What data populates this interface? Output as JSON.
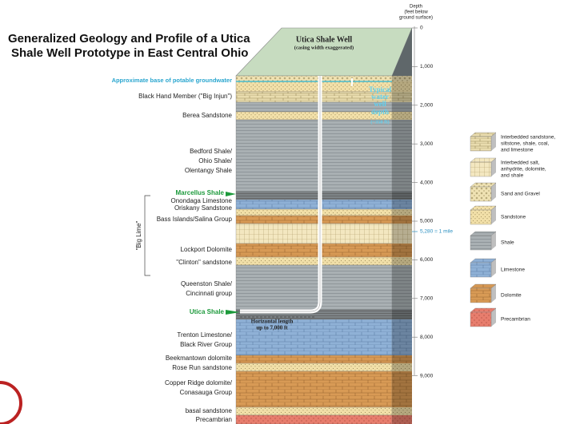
{
  "title": [
    "Generalized Geology and Profile of a Utica",
    "Shale Well Prototype in East Central Ohio"
  ],
  "well": {
    "label": "Utica Shale Well",
    "note": "(casing width exaggerated)",
    "water_well": [
      "Typical",
      "water",
      "well",
      "depth",
      "(~350 ft)"
    ],
    "horizontal": [
      "Horizontal length",
      "up to 7,000 ft"
    ]
  },
  "groundwater": "Approximate base of potable groundwater",
  "big_lime": "\"Big Lime\"",
  "formations": [
    {
      "label": [
        "Black Hand Member (\"Big Injun\")"
      ]
    },
    {
      "label": [
        "Berea Sandstone"
      ]
    },
    {
      "label": [
        "Bedford Shale/",
        "Ohio Shale/",
        "Olentangy Shale"
      ]
    },
    {
      "label": [
        "Marcellus Shale"
      ]
    },
    {
      "label": [
        "Onondaga Limestone",
        "Oriskany Sandstone"
      ]
    },
    {
      "label": [
        "Bass Islands/Salina Group"
      ]
    },
    {
      "label": [
        "Lockport Dolomite"
      ]
    },
    {
      "label": [
        "\"Clinton\" sandstone"
      ]
    },
    {
      "label": [
        "Queenston Shale/",
        "Cincinnati group"
      ]
    },
    {
      "label": [
        "Utica Shale"
      ]
    },
    {
      "label": [
        "Trenton Limestone/",
        "Black River Group"
      ]
    },
    {
      "label": [
        "Beekmantown dolomite",
        "Rose Run sandstone"
      ]
    },
    {
      "label": [
        "Copper Ridge dolomite/",
        "Conasauga Group"
      ]
    },
    {
      "label": [
        "basal sandstone",
        "Precambrian"
      ]
    }
  ],
  "depth": {
    "heading": [
      "Depth",
      "(feet below",
      "ground surface)"
    ],
    "ticks": [
      "0",
      "1,000",
      "2,000",
      "3,000",
      "4,000",
      "5,000",
      "6,000",
      "7,000",
      "8,000",
      "9,000"
    ],
    "mile": "5,280 = 1 mile"
  },
  "legend": [
    {
      "label": [
        "Interbedded sandstone,",
        "siltstone, shale, coal,",
        "and limestone"
      ]
    },
    {
      "label": [
        "Interbedded salt,",
        "anhydrite, dolomite,",
        "and shale"
      ]
    },
    {
      "label": [
        "Sand and Gravel"
      ]
    },
    {
      "label": [
        "Sandstone"
      ]
    },
    {
      "label": [
        "Shale"
      ]
    },
    {
      "label": [
        "Limestone"
      ]
    },
    {
      "label": [
        "Dolomite"
      ]
    },
    {
      "label": [
        "Precambrian"
      ]
    }
  ]
}
